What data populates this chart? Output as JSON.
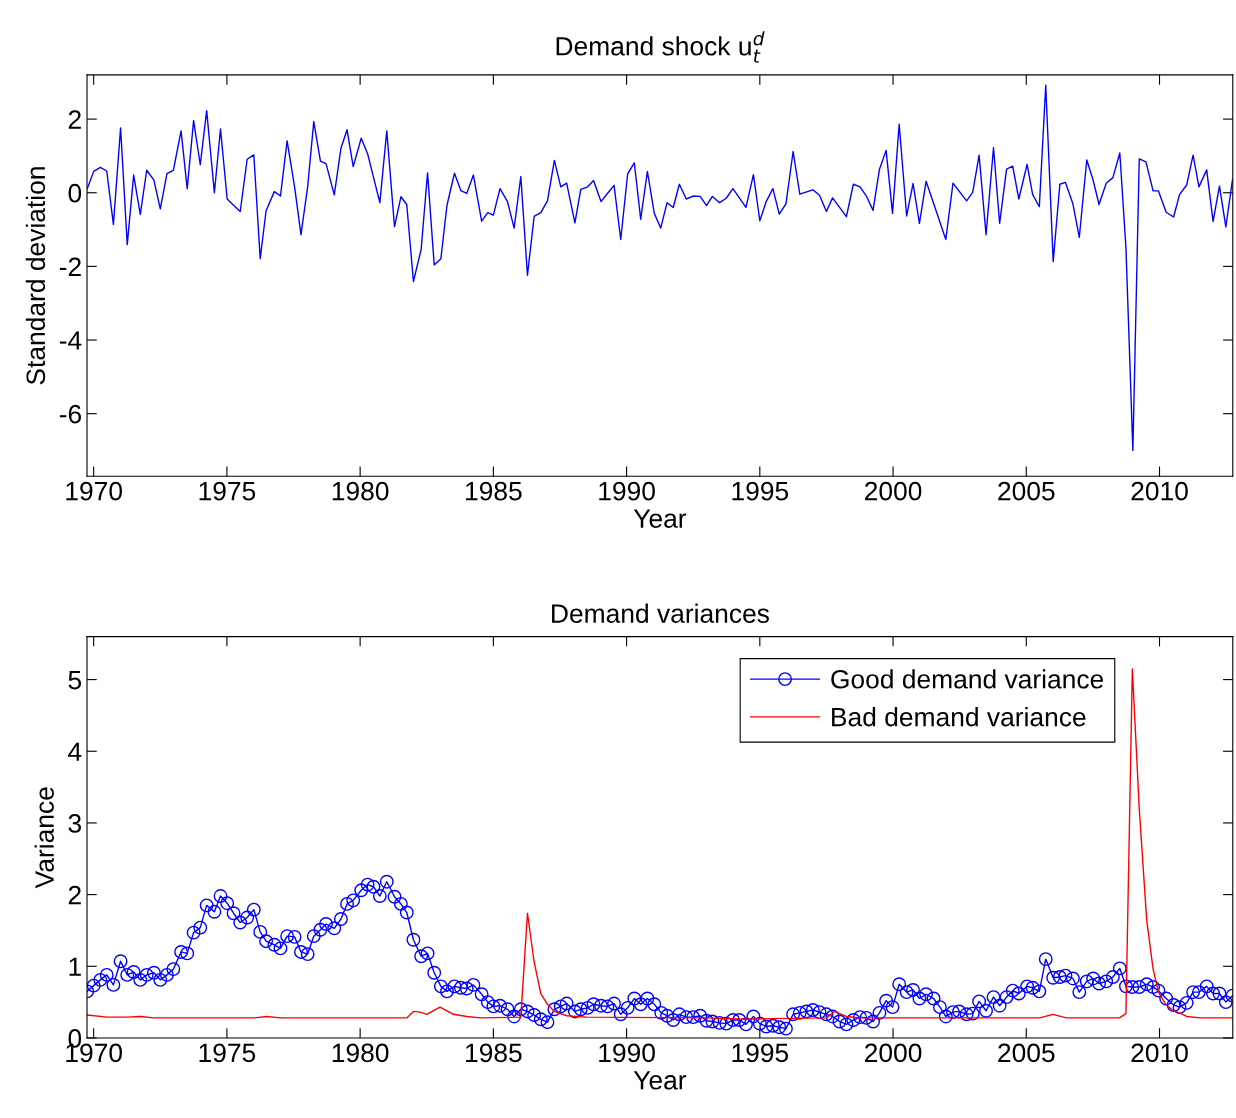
{
  "chart_data": [
    {
      "type": "line",
      "title": "Demand shock u$^{d}$$_{t}$",
      "xlabel": "Year",
      "ylabel": "Standard deviation",
      "xlim": [
        1969.75,
        2012.75
      ],
      "xticks": [
        1970,
        1975,
        1980,
        1985,
        1990,
        1995,
        2000,
        2005,
        2010
      ],
      "ylim": [
        -7.7,
        3.2
      ],
      "yticks": [
        -6,
        -4,
        -2,
        0,
        2
      ],
      "grid": false,
      "legend": false,
      "marker": "none",
      "line_style": "solid",
      "series": [
        {
          "color": "#0000ff",
          "x": [
            1969.76,
            1970,
            1970.25,
            1970.49,
            1970.74,
            1971.01,
            1971.26,
            1971.5,
            1971.75,
            1971.99,
            1972.26,
            1972.5,
            1972.75,
            1972.99,
            1973.28,
            1973.51,
            1973.75,
            1974,
            1974.24,
            1974.53,
            1974.76,
            1975.01,
            1975.25,
            1975.5,
            1975.76,
            1976.01,
            1976.25,
            1976.47,
            1976.78,
            1977.01,
            1977.26,
            1977.54,
            1977.78,
            1978.03,
            1978.26,
            1978.51,
            1978.72,
            1979.03,
            1979.28,
            1979.51,
            1979.74,
            1980.04,
            1980.28,
            1980.74,
            1981,
            1981.29,
            1981.53,
            1981.75,
            1982,
            1982.29,
            1982.53,
            1982.78,
            1983.03,
            1983.26,
            1983.54,
            1983.78,
            1984,
            1984.25,
            1984.56,
            1984.79,
            1985,
            1985.25,
            1985.53,
            1985.78,
            1986.03,
            1986.28,
            1986.53,
            1986.78,
            1987.03,
            1987.29,
            1987.53,
            1987.75,
            1988.06,
            1988.28,
            1988.54,
            1988.76,
            1989.04,
            1989.28,
            1989.53,
            1989.78,
            1990.04,
            1990.29,
            1990.53,
            1990.78,
            1991.04,
            1991.28,
            1991.52,
            1991.75,
            1991.98,
            1992.24,
            1992.5,
            1992.76,
            1993,
            1993.22,
            1993.49,
            1993.74,
            1993.99,
            1994.48,
            1994.76,
            1995,
            1995.24,
            1995.49,
            1995.73,
            1995.98,
            1996.25,
            1996.5,
            1996.99,
            1997.24,
            1997.5,
            1997.73,
            1998.25,
            1998.51,
            1998.76,
            1999,
            1999.25,
            1999.49,
            1999.74,
            1999.98,
            2000.23,
            2000.51,
            2000.75,
            2000.99,
            2001.24,
            2001.98,
            2002.25,
            2002.76,
            2002.99,
            2003.23,
            2003.49,
            2003.77,
            2004,
            2004.26,
            2004.49,
            2004.72,
            2005.03,
            2005.24,
            2005.49,
            2005.73,
            2006.01,
            2006.26,
            2006.47,
            2006.75,
            2006.99,
            2007.27,
            2007.51,
            2007.73,
            2008,
            2008.25,
            2008.51,
            2008.74,
            2009,
            2009.24,
            2009.49,
            2009.76,
            2009.96,
            2010.25,
            2010.53,
            2010.75,
            2011.02,
            2011.26,
            2011.48,
            2011.77,
            2012.01,
            2012.25,
            2012.49,
            2012.74
          ],
          "values": [
            0.11,
            0.58,
            0.69,
            0.59,
            -0.86,
            1.76,
            -1.41,
            0.48,
            -0.59,
            0.61,
            0.34,
            -0.44,
            0.52,
            0.61,
            1.68,
            0.11,
            1.96,
            0.76,
            2.23,
            0,
            1.73,
            -0.17,
            -0.34,
            -0.51,
            0.91,
            1.03,
            -1.79,
            -0.49,
            0.03,
            -0.09,
            1.41,
            0.16,
            -1.14,
            0.16,
            1.93,
            0.86,
            0.79,
            -0.06,
            1.21,
            1.71,
            0.71,
            1.48,
            1.06,
            -0.27,
            1.68,
            -0.92,
            -0.11,
            -0.32,
            -2.41,
            -1.54,
            0.54,
            -1.96,
            -1.79,
            -0.34,
            0.53,
            0.06,
            -0.02,
            0.48,
            -0.77,
            -0.54,
            -0.61,
            0.11,
            -0.24,
            -0.96,
            0.44,
            -2.24,
            -0.64,
            -0.54,
            -0.22,
            0.88,
            0.16,
            0.26,
            -0.82,
            0.09,
            0.16,
            0.33,
            -0.24,
            -0.02,
            0.2,
            -1.27,
            0.51,
            0.81,
            -0.72,
            0.58,
            -0.56,
            -0.96,
            -0.27,
            -0.4,
            0.23,
            -0.17,
            -0.09,
            -0.1,
            -0.35,
            -0.1,
            -0.27,
            -0.15,
            0.11,
            -0.4,
            0.49,
            -0.76,
            -0.24,
            0.11,
            -0.58,
            -0.3,
            1.12,
            -0.04,
            0.08,
            -0.07,
            -0.51,
            -0.14,
            -0.65,
            0.23,
            0.16,
            -0.09,
            -0.48,
            0.64,
            1.15,
            -0.56,
            1.86,
            -0.63,
            0.25,
            -0.83,
            0.31,
            -1.27,
            0.26,
            -0.22,
            0.01,
            1.02,
            -1.14,
            1.22,
            -0.83,
            0.64,
            0.72,
            -0.17,
            0.77,
            -0.05,
            -0.38,
            2.92,
            -1.87,
            0.23,
            0.28,
            -0.3,
            -1.21,
            0.89,
            0.34,
            -0.32,
            0.26,
            0.41,
            1.08,
            -1.49,
            -7.0,
            0.92,
            0.84,
            0.05,
            0.05,
            -0.53,
            -0.66,
            -0.05,
            0.21,
            1.02,
            0.16,
            0.62,
            -0.78,
            0.18,
            -0.93,
            0.36
          ]
        }
      ]
    },
    {
      "type": "line",
      "title": "Demand variances",
      "xlabel": "Year",
      "ylabel": "Variance",
      "xlim": [
        1969.75,
        2012.75
      ],
      "xticks": [
        1970,
        1975,
        1980,
        1985,
        1990,
        1995,
        2000,
        2005,
        2010
      ],
      "ylim": [
        0,
        5.6
      ],
      "yticks": [
        0,
        1,
        2,
        3,
        4,
        5
      ],
      "grid": false,
      "legend": "top right",
      "line_style": "solid",
      "series": [
        {
          "name": "Good demand variance",
          "color": "#0000ff",
          "marker": "circle",
          "x": [
            1969.76,
            1970,
            1970.25,
            1970.49,
            1970.74,
            1971.01,
            1971.26,
            1971.5,
            1971.75,
            1971.99,
            1972.26,
            1972.5,
            1972.75,
            1972.99,
            1973.28,
            1973.51,
            1973.75,
            1974,
            1974.24,
            1974.53,
            1974.76,
            1975.01,
            1975.25,
            1975.5,
            1975.76,
            1976.01,
            1976.25,
            1976.47,
            1976.78,
            1977.01,
            1977.26,
            1977.54,
            1977.78,
            1978.03,
            1978.26,
            1978.51,
            1978.72,
            1979.03,
            1979.28,
            1979.51,
            1979.74,
            1980.04,
            1980.28,
            1980.5,
            1980.74,
            1981,
            1981.29,
            1981.53,
            1981.75,
            1982,
            1982.29,
            1982.53,
            1982.78,
            1983.03,
            1983.26,
            1983.54,
            1983.78,
            1984,
            1984.25,
            1984.56,
            1984.79,
            1985,
            1985.25,
            1985.53,
            1985.78,
            1986.03,
            1986.28,
            1986.53,
            1986.78,
            1987.03,
            1987.29,
            1987.53,
            1987.75,
            1988.06,
            1988.28,
            1988.54,
            1988.76,
            1989.04,
            1989.28,
            1989.53,
            1989.78,
            1990.04,
            1990.29,
            1990.53,
            1990.78,
            1991.04,
            1991.3,
            1991.52,
            1991.75,
            1991.98,
            1992.24,
            1992.5,
            1992.76,
            1993,
            1993.22,
            1993.49,
            1993.74,
            1993.99,
            1994.23,
            1994.48,
            1994.76,
            1995,
            1995.24,
            1995.49,
            1995.73,
            1995.98,
            1996.25,
            1996.5,
            1996.75,
            1996.99,
            1997.24,
            1997.5,
            1997.73,
            1997.99,
            1998.25,
            1998.51,
            1998.76,
            1999,
            1999.25,
            1999.49,
            1999.74,
            1999.98,
            2000.23,
            2000.51,
            2000.75,
            2000.99,
            2001.24,
            2001.52,
            2001.76,
            2001.98,
            2002.25,
            2002.48,
            2002.76,
            2002.99,
            2003.23,
            2003.49,
            2003.77,
            2004,
            2004.26,
            2004.49,
            2004.72,
            2005.03,
            2005.24,
            2005.49,
            2005.73,
            2006.01,
            2006.26,
            2006.47,
            2006.75,
            2006.99,
            2007.27,
            2007.51,
            2007.73,
            2008,
            2008.25,
            2008.51,
            2008.74,
            2008.98,
            2009.24,
            2009.52,
            2009.76,
            2009.96,
            2010.25,
            2010.53,
            2010.75,
            2011.02,
            2011.26,
            2011.48,
            2011.77,
            2012.01,
            2012.25,
            2012.49,
            2012.74
          ],
          "values": [
            0.65,
            0.73,
            0.81,
            0.88,
            0.74,
            1.07,
            0.88,
            0.92,
            0.81,
            0.88,
            0.91,
            0.81,
            0.88,
            0.96,
            1.2,
            1.18,
            1.47,
            1.54,
            1.85,
            1.76,
            1.98,
            1.88,
            1.74,
            1.61,
            1.68,
            1.79,
            1.48,
            1.35,
            1.3,
            1.25,
            1.42,
            1.41,
            1.2,
            1.17,
            1.42,
            1.51,
            1.59,
            1.53,
            1.66,
            1.87,
            1.92,
            2.06,
            2.14,
            2.11,
            1.98,
            2.18,
            1.97,
            1.87,
            1.75,
            1.37,
            1.14,
            1.18,
            0.91,
            0.72,
            0.65,
            0.72,
            0.7,
            0.69,
            0.74,
            0.61,
            0.5,
            0.44,
            0.45,
            0.4,
            0.3,
            0.4,
            0.37,
            0.32,
            0.26,
            0.22,
            0.4,
            0.44,
            0.48,
            0.37,
            0.4,
            0.42,
            0.47,
            0.45,
            0.44,
            0.48,
            0.33,
            0.42,
            0.55,
            0.47,
            0.55,
            0.47,
            0.35,
            0.31,
            0.25,
            0.33,
            0.29,
            0.29,
            0.31,
            0.24,
            0.23,
            0.21,
            0.2,
            0.25,
            0.25,
            0.19,
            0.3,
            0.2,
            0.16,
            0.17,
            0.15,
            0.13,
            0.33,
            0.35,
            0.37,
            0.39,
            0.36,
            0.33,
            0.3,
            0.23,
            0.19,
            0.25,
            0.29,
            0.28,
            0.23,
            0.35,
            0.52,
            0.43,
            0.75,
            0.64,
            0.67,
            0.55,
            0.61,
            0.55,
            0.43,
            0.3,
            0.36,
            0.37,
            0.33,
            0.34,
            0.51,
            0.38,
            0.57,
            0.45,
            0.57,
            0.66,
            0.62,
            0.72,
            0.7,
            0.65,
            1.1,
            0.84,
            0.85,
            0.87,
            0.83,
            0.64,
            0.79,
            0.83,
            0.76,
            0.79,
            0.85,
            0.97,
            0.72,
            0.71,
            0.71,
            0.75,
            0.71,
            0.66,
            0.55,
            0.46,
            0.43,
            0.49,
            0.64,
            0.64,
            0.72,
            0.62,
            0.62,
            0.5,
            0.59
          ]
        },
        {
          "name": "Bad demand variance",
          "color": "#ff0000",
          "marker": "none",
          "x": [
            1969.75,
            1970.5,
            1971.25,
            1971.75,
            1972.25,
            1976.0,
            1976.5,
            1977.0,
            1981.75,
            1982.0,
            1982.25,
            1982.5,
            1983.0,
            1983.5,
            1984.0,
            1984.5,
            1986.03,
            1986.28,
            1986.53,
            1986.78,
            1987.03,
            1987.29,
            1987.75,
            1988.5,
            1993.0,
            1994.5,
            1995.5,
            1997.5,
            1997.8,
            1998.25,
            1998.75,
            2005.5,
            2006.0,
            2006.5,
            2008.5,
            2008.74,
            2008.98,
            2009.24,
            2009.52,
            2009.76,
            2009.96,
            2010.25,
            2010.53,
            2010.75,
            2011.02,
            2011.5,
            2012.75
          ],
          "values": [
            0.32,
            0.29,
            0.29,
            0.3,
            0.28,
            0.28,
            0.3,
            0.28,
            0.28,
            0.37,
            0.36,
            0.33,
            0.43,
            0.33,
            0.3,
            0.28,
            0.29,
            1.74,
            1.06,
            0.62,
            0.47,
            0.37,
            0.31,
            0.29,
            0.28,
            0.26,
            0.27,
            0.28,
            0.37,
            0.3,
            0.28,
            0.28,
            0.33,
            0.28,
            0.28,
            0.34,
            5.15,
            3.2,
            1.64,
            0.96,
            0.64,
            0.46,
            0.38,
            0.35,
            0.3,
            0.28,
            0.28
          ]
        }
      ]
    }
  ]
}
